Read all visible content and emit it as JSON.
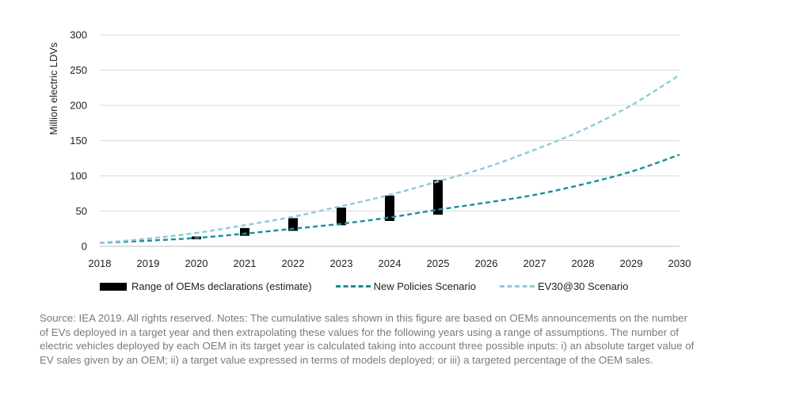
{
  "chart_data": {
    "type": "line",
    "ylabel": "Million electric LDVs",
    "ylim": [
      0,
      300
    ],
    "yticks": [
      0,
      50,
      100,
      150,
      200,
      250,
      300
    ],
    "x": [
      2018,
      2019,
      2020,
      2021,
      2022,
      2023,
      2024,
      2025,
      2026,
      2027,
      2028,
      2029,
      2030
    ],
    "grid": true,
    "legend_position": "bottom",
    "series": [
      {
        "name": "New Policies Scenario",
        "style": "dashed",
        "color": "#1f8ca0",
        "values": [
          5,
          8,
          12,
          18,
          25,
          32,
          41,
          52,
          62,
          73,
          88,
          106,
          130
        ]
      },
      {
        "name": "EV30@30 Scenario",
        "style": "dashed",
        "color": "#8ccbdc",
        "values": [
          5,
          11,
          19,
          30,
          42,
          57,
          73,
          92,
          112,
          137,
          165,
          200,
          243
        ]
      }
    ],
    "ranges": {
      "name": "Range of OEMs declarations (estimate)",
      "color": "#000000",
      "items": [
        {
          "x": 2020,
          "low": 10,
          "high": 14
        },
        {
          "x": 2021,
          "low": 15,
          "high": 26
        },
        {
          "x": 2022,
          "low": 22,
          "high": 40
        },
        {
          "x": 2023,
          "low": 30,
          "high": 55
        },
        {
          "x": 2024,
          "low": 36,
          "high": 72
        },
        {
          "x": 2025,
          "low": 45,
          "high": 94
        }
      ]
    }
  },
  "note": "Source: IEA 2019. All rights reserved. Notes: The cumulative sales shown in this figure are based on OEMs announcements on the number of EVs deployed in a target year and then extrapolating these values for the following years using a range of assumptions. The number of electric vehicles deployed by each OEM in its target year is calculated taking into account three possible inputs: i) an absolute target value of EV sales given by an OEM; ii) a target value expressed in terms of models deployed; or iii) a targeted percentage of the OEM sales."
}
